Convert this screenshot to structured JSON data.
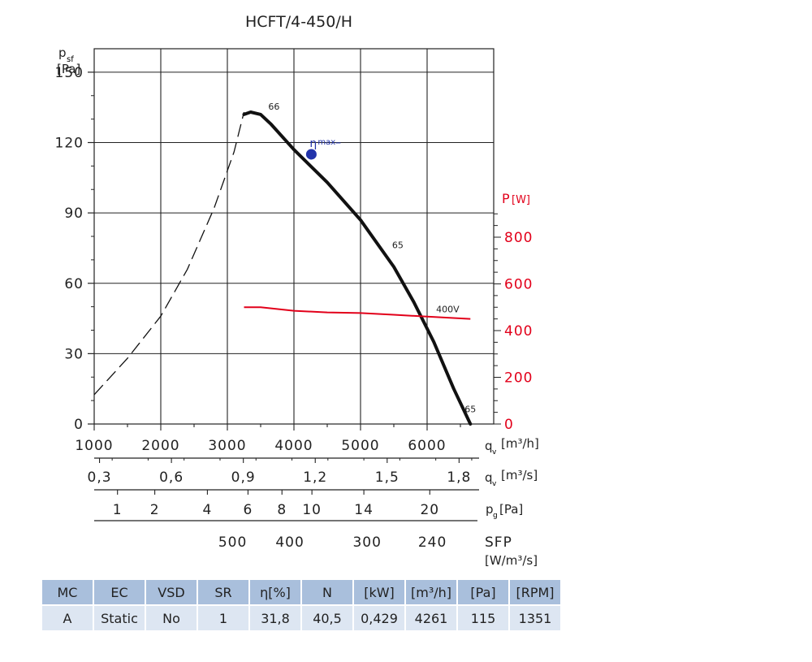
{
  "chart_data": {
    "type": "line",
    "title": "HCFT/4-450/H",
    "y_axis": {
      "label": "p",
      "label_sub": "sf",
      "unit": "[Pa]",
      "ticks": [
        "0",
        "30",
        "60",
        "90",
        "120",
        "150"
      ],
      "range": [
        0,
        160
      ]
    },
    "y2_axis": {
      "label": "P",
      "unit": "[W]",
      "ticks": [
        "0",
        "200",
        "400",
        "600",
        "800"
      ],
      "range": [
        0,
        800
      ]
    },
    "x_axis": {
      "label": "q",
      "label_sub": "v",
      "unit": "[m³/h]",
      "ticks": [
        "1000",
        "2000",
        "3000",
        "4000",
        "5000",
        "6000"
      ],
      "range": [
        1000,
        7000
      ]
    },
    "x_scales": [
      {
        "label": "q",
        "label_sub": "v",
        "unit": "[m³/s]",
        "ticks": [
          {
            "label": "0,3",
            "at": 1080
          },
          {
            "label": "0,6",
            "at": 2160
          },
          {
            "label": "0,9",
            "at": 3240
          },
          {
            "label": "1,2",
            "at": 4320
          },
          {
            "label": "1,5",
            "at": 5400
          },
          {
            "label": "1,8",
            "at": 6480
          }
        ]
      },
      {
        "label": "p",
        "label_sub": "g",
        "unit": "[Pa]",
        "ticks": [
          {
            "label": "1",
            "at": 1350
          },
          {
            "label": "2",
            "at": 1910
          },
          {
            "label": "4",
            "at": 2700
          },
          {
            "label": "6",
            "at": 3310
          },
          {
            "label": "8",
            "at": 3820
          },
          {
            "label": "10",
            "at": 4270
          },
          {
            "label": "14",
            "at": 5050
          },
          {
            "label": "20",
            "at": 6040
          }
        ]
      },
      {
        "label": "SFP",
        "unit": "[W/m³/s]",
        "ticks": [
          {
            "label": "500",
            "at": 3080
          },
          {
            "label": "400",
            "at": 3940
          },
          {
            "label": "300",
            "at": 5100
          },
          {
            "label": "240",
            "at": 6080
          }
        ]
      }
    ],
    "series": [
      {
        "kind": "pressure-unstable",
        "style": "dashed",
        "x": [
          1000,
          1500,
          2000,
          2400,
          2800,
          3100,
          3250
        ],
        "y": [
          12.5,
          28,
          46,
          66,
          92,
          116,
          133
        ]
      },
      {
        "kind": "pressure",
        "x": [
          3250,
          3350,
          3500,
          3650,
          4000,
          4500,
          5000,
          5500,
          5800,
          6100,
          6400,
          6650
        ],
        "y": [
          132,
          133,
          132,
          128,
          117,
          103,
          87,
          67,
          52,
          35,
          15,
          0
        ]
      },
      {
        "kind": "power",
        "axis": "y2",
        "x": [
          3250,
          3500,
          4000,
          4500,
          5000,
          5500,
          6000,
          6650
        ],
        "y": [
          500,
          500,
          485,
          478,
          475,
          468,
          460,
          450
        ]
      }
    ],
    "annotations": [
      {
        "text": "66",
        "x": 3700,
        "y": 134
      },
      {
        "text": "65",
        "x": 5560,
        "y": 75
      },
      {
        "text": "65",
        "x": 6650,
        "y": 5
      },
      {
        "text": "400V",
        "x": 6310,
        "y": 478,
        "axis": "y2"
      }
    ],
    "eta_max": {
      "label": "η",
      "label_sub": "max",
      "x": 4261,
      "y": 115
    },
    "grid": true,
    "colors": {
      "curve": "#111111",
      "power": "#e2001a",
      "eta_point": "#2233aa",
      "grid": "#222222"
    }
  },
  "table": {
    "headers": [
      "MC",
      "EC",
      "VSD",
      "SR",
      "η[%]",
      "N",
      "[kW]",
      "[m³/h]",
      "[Pa]",
      "[RPM]"
    ],
    "rows": [
      [
        "A",
        "Static",
        "No",
        "1",
        "31,8",
        "40,5",
        "0,429",
        "4261",
        "115",
        "1351"
      ]
    ]
  }
}
